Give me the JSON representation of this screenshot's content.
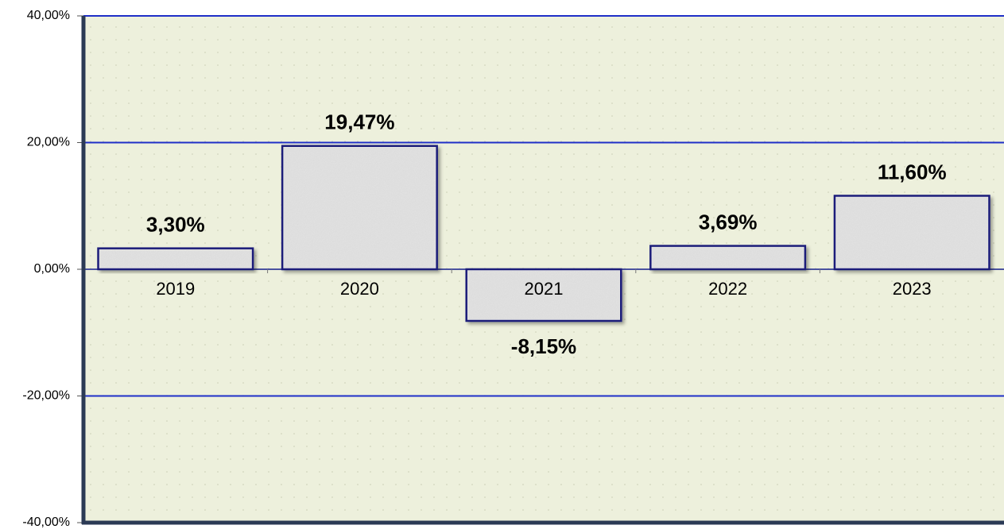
{
  "chart_data": {
    "type": "bar",
    "categories": [
      "2019",
      "2020",
      "2021",
      "2022",
      "2023"
    ],
    "values": [
      3.3,
      19.47,
      -8.15,
      3.69,
      11.6
    ],
    "value_labels": [
      "3,30%",
      "19,47%",
      "-8,15%",
      "3,69%",
      "11,60%"
    ],
    "color": "#e4e4e4",
    "edge_color": "#1a1f7a",
    "ylim": [
      -40,
      40
    ],
    "yticks": [
      {
        "value": -40,
        "label": "-40,00%"
      },
      {
        "value": -20,
        "label": "-20,00%"
      },
      {
        "value": 0,
        "label": "0,00%"
      },
      {
        "value": 20,
        "label": "20,00%"
      },
      {
        "value": 40,
        "label": "40,00%"
      }
    ],
    "grid": true,
    "grid_color": "#1f2fc8"
  }
}
